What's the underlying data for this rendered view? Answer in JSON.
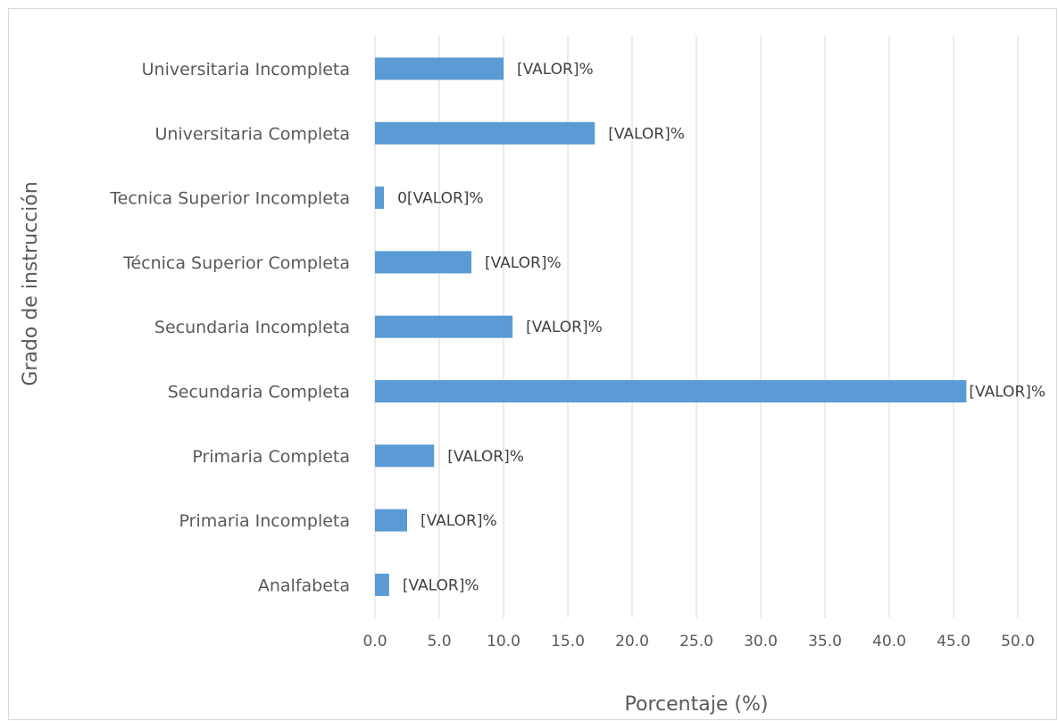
{
  "chart_data": {
    "type": "bar",
    "orientation": "horizontal",
    "title": "",
    "xlabel": "Porcentaje (%)",
    "ylabel": "Grado de instrucción",
    "categories": [
      "Universitaria Incompleta",
      "Universitaria Completa",
      "Tecnica Superior Incompleta",
      "Técnica Superior Completa",
      "Secundaria Incompleta",
      "Secundaria Completa",
      "Primaria Completa",
      "Primaria Incompleta",
      "Analfabeta"
    ],
    "values": [
      10.0,
      17.1,
      0.7,
      7.5,
      10.7,
      46.0,
      4.6,
      2.5,
      1.1
    ],
    "data_labels": [
      "[VALOR]%",
      "[VALOR]%",
      "0[VALOR]%",
      "[VALOR]%",
      "[VALOR]%",
      "[VALOR]%",
      "[VALOR]%",
      "[VALOR]%",
      "[VALOR]%"
    ],
    "x_ticks": [
      "0.0",
      "5.0",
      "10.0",
      "15.0",
      "20.0",
      "25.0",
      "30.0",
      "35.0",
      "40.0",
      "45.0",
      "50.0"
    ],
    "xlim": [
      0,
      50
    ],
    "grid": "vertical",
    "legend": "none",
    "bar_color": "#5b9bd5",
    "grid_color": "#d9d9d9"
  }
}
